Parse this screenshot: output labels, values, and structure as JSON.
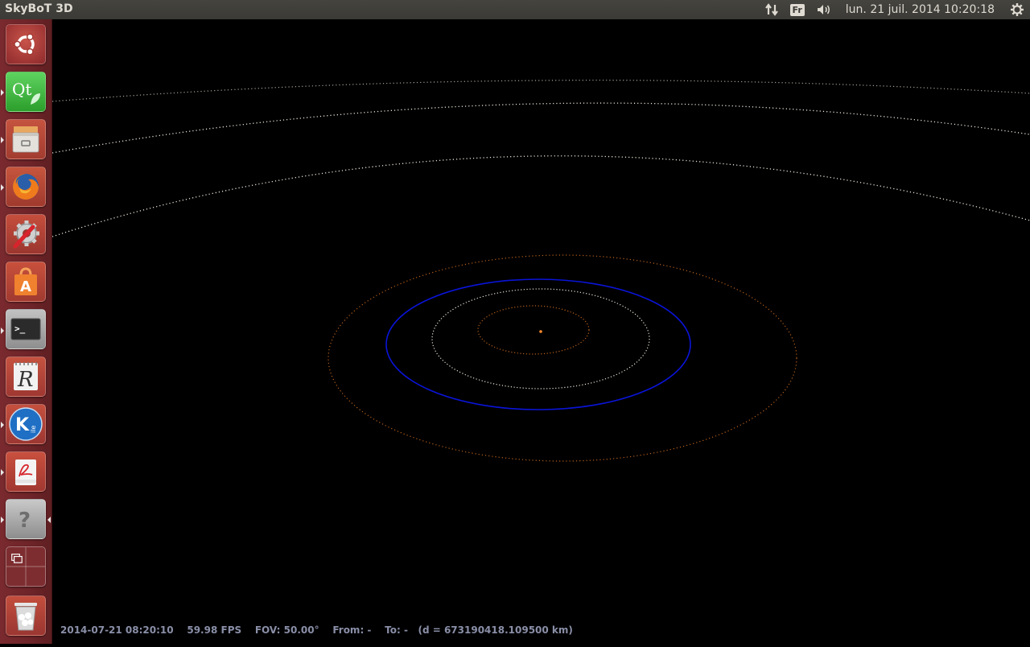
{
  "topbar": {
    "app_title": "SkyBoT 3D",
    "keyboard_layout": "Fr",
    "clock": "lun. 21 juil. 2014 10:20:18"
  },
  "launcher": {
    "items": [
      {
        "name": "dash-home",
        "icon": "ubuntu-logo-icon"
      },
      {
        "name": "qt-creator",
        "icon": "qt-icon",
        "label": "Qt"
      },
      {
        "name": "files",
        "icon": "file-cabinet-icon"
      },
      {
        "name": "firefox",
        "icon": "firefox-icon"
      },
      {
        "name": "system-settings",
        "icon": "settings-wrench-icon"
      },
      {
        "name": "software-center",
        "icon": "shopping-bag-icon",
        "label": "A"
      },
      {
        "name": "terminal",
        "icon": "terminal-icon",
        "label": ">_"
      },
      {
        "name": "rstudio",
        "icon": "r-notebook-icon",
        "label": "R"
      },
      {
        "name": "kile",
        "icon": "kile-icon",
        "label": "K"
      },
      {
        "name": "pdf-reader",
        "icon": "pdf-icon"
      },
      {
        "name": "unknown-app",
        "icon": "question-icon",
        "label": "?"
      },
      {
        "name": "workspace-switcher",
        "icon": "workspaces-icon"
      },
      {
        "name": "trash",
        "icon": "trash-icon"
      }
    ]
  },
  "hud": {
    "datetime": "2014-07-21 08:20:10",
    "fps": "59.98 FPS",
    "fov": "FOV: 50.00°",
    "from": "From: -",
    "to": "To: -",
    "distance": "(d = 673190418.109500 km)"
  },
  "colors": {
    "launcher_bg": "#6d2428",
    "orbit_blue": "#0a14d8",
    "orbit_orange": "#b8601a",
    "orbit_white": "#e8e4d8",
    "sun": "#ff8c2a"
  }
}
